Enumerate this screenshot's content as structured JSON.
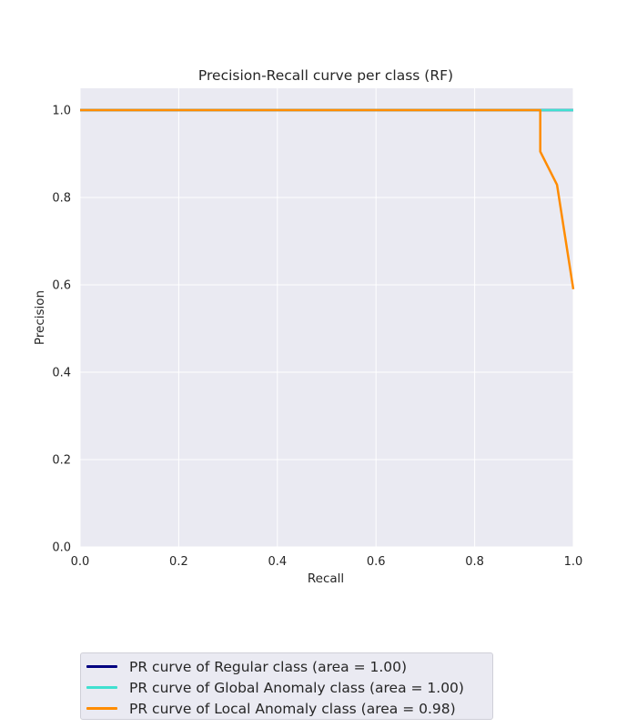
{
  "chart_data": {
    "type": "line",
    "title": "Precision-Recall curve per class (RF)",
    "xlabel": "Recall",
    "ylabel": "Precision",
    "xlim": [
      0.0,
      1.0
    ],
    "ylim": [
      0.0,
      1.05
    ],
    "xticks": [
      "0.0",
      "0.2",
      "0.4",
      "0.6",
      "0.8",
      "1.0"
    ],
    "yticks": [
      "0.0",
      "0.2",
      "0.4",
      "0.6",
      "0.8",
      "1.0"
    ],
    "grid": true,
    "legend_position": "lower-left, outside below plot",
    "series": [
      {
        "name": "PR curve of Regular class (area = 1.00)",
        "color": "#000080",
        "x": [
          0.0,
          1.0
        ],
        "y": [
          1.0,
          1.0
        ]
      },
      {
        "name": "PR curve of Global Anomaly class (area = 1.00)",
        "color": "#40e0d0",
        "x": [
          0.0,
          0.93,
          1.0
        ],
        "y": [
          1.0,
          1.0,
          1.0
        ]
      },
      {
        "name": "PR curve of Local Anomaly class (area = 0.98)",
        "color": "#ff8c00",
        "x": [
          0.0,
          0.933,
          0.933,
          0.967,
          1.0
        ],
        "y": [
          1.0,
          1.0,
          0.905,
          0.829,
          0.59
        ]
      }
    ]
  }
}
